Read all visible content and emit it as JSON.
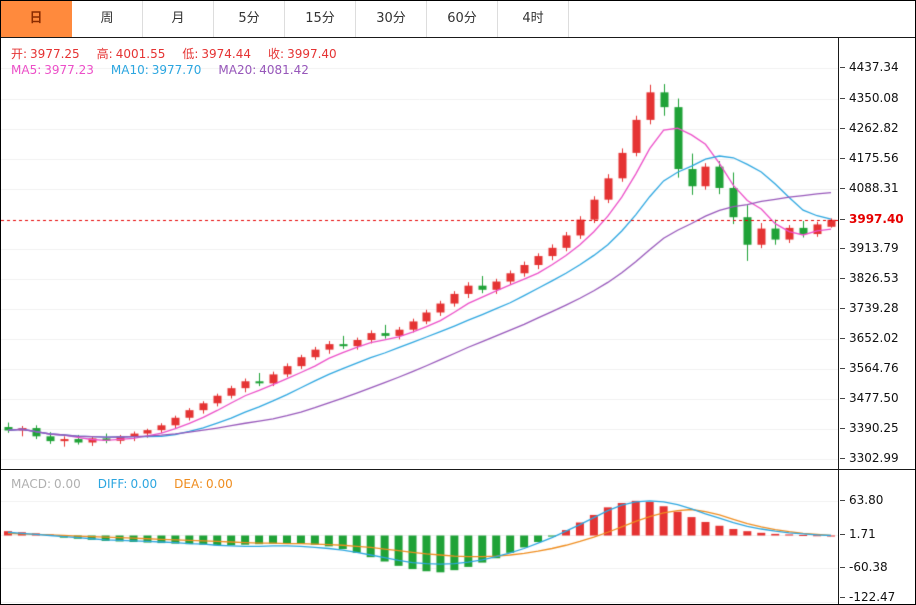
{
  "tabs": {
    "items": [
      {
        "label": "日",
        "active": true
      },
      {
        "label": "周",
        "active": false
      },
      {
        "label": "月",
        "active": false
      },
      {
        "label": "5分",
        "active": false
      },
      {
        "label": "15分",
        "active": false
      },
      {
        "label": "30分",
        "active": false
      },
      {
        "label": "60分",
        "active": false
      },
      {
        "label": "4时",
        "active": false
      }
    ]
  },
  "main_chart": {
    "info": {
      "open_label": "开:",
      "open": "3977.25",
      "high_label": "高:",
      "high": "4001.55",
      "low_label": "低:",
      "low": "3974.44",
      "close_label": "收:",
      "close": "3997.40"
    },
    "ma_info": {
      "ma5_label": "MA5:",
      "ma5": "3977.23",
      "ma10_label": "MA10:",
      "ma10": "3977.70",
      "ma20_label": "MA20:",
      "ma20": "4081.42"
    }
  },
  "macd_panel": {
    "macd_label": "MACD:",
    "macd": "0.00",
    "diff_label": "DIFF:",
    "diff": "0.00",
    "dea_label": "DEA:",
    "dea": "0.00"
  },
  "colors": {
    "up": "#e53333",
    "down": "#1fa237",
    "ma5": "#ec4fc8",
    "ma10": "#2ca6e0",
    "ma20": "#9757ba",
    "price_line": "#e60000",
    "diff": "#2ca6e0",
    "dea": "#ef8d1f",
    "grid": "#f1f1f1",
    "active_tab_bg": "#ff8a3d",
    "active_tab_text": "#8a2b00"
  },
  "chart_data": [
    {
      "type": "candlestick",
      "ylabel": "price",
      "grid": true,
      "price_range": [
        3273,
        4526
      ],
      "current_price": 3997.4,
      "ma_periods": [
        5,
        10,
        20
      ],
      "y_axis_labels": [
        4437.34,
        4350.08,
        4262.82,
        4175.56,
        4088.31,
        3913.79,
        3826.53,
        3739.28,
        3652.02,
        3564.76,
        3477.5,
        3390.25,
        3302.99
      ],
      "candles": [
        [
          3395,
          3408,
          3378,
          3385
        ],
        [
          3385,
          3398,
          3368,
          3392
        ],
        [
          3392,
          3400,
          3360,
          3368
        ],
        [
          3368,
          3380,
          3346,
          3354
        ],
        [
          3354,
          3368,
          3338,
          3360
        ],
        [
          3360,
          3372,
          3344,
          3350
        ],
        [
          3350,
          3366,
          3340,
          3362
        ],
        [
          3362,
          3376,
          3348,
          3355
        ],
        [
          3355,
          3372,
          3346,
          3368
        ],
        [
          3368,
          3382,
          3354,
          3376
        ],
        [
          3376,
          3390,
          3364,
          3386
        ],
        [
          3386,
          3406,
          3378,
          3400
        ],
        [
          3400,
          3428,
          3392,
          3422
        ],
        [
          3422,
          3450,
          3414,
          3444
        ],
        [
          3444,
          3470,
          3434,
          3464
        ],
        [
          3464,
          3492,
          3455,
          3486
        ],
        [
          3486,
          3515,
          3478,
          3508
        ],
        [
          3508,
          3536,
          3496,
          3528
        ],
        [
          3528,
          3552,
          3514,
          3522
        ],
        [
          3522,
          3556,
          3514,
          3548
        ],
        [
          3548,
          3580,
          3540,
          3572
        ],
        [
          3572,
          3605,
          3564,
          3598
        ],
        [
          3598,
          3628,
          3590,
          3620
        ],
        [
          3620,
          3645,
          3608,
          3636
        ],
        [
          3636,
          3660,
          3622,
          3630
        ],
        [
          3630,
          3655,
          3620,
          3648
        ],
        [
          3648,
          3676,
          3638,
          3668
        ],
        [
          3668,
          3692,
          3652,
          3660
        ],
        [
          3660,
          3686,
          3650,
          3678
        ],
        [
          3678,
          3710,
          3670,
          3702
        ],
        [
          3702,
          3736,
          3694,
          3728
        ],
        [
          3728,
          3762,
          3718,
          3754
        ],
        [
          3754,
          3790,
          3745,
          3782
        ],
        [
          3782,
          3816,
          3770,
          3806
        ],
        [
          3806,
          3834,
          3784,
          3794
        ],
        [
          3794,
          3826,
          3782,
          3818
        ],
        [
          3818,
          3850,
          3808,
          3842
        ],
        [
          3842,
          3876,
          3832,
          3866
        ],
        [
          3866,
          3900,
          3854,
          3892
        ],
        [
          3892,
          3926,
          3880,
          3916
        ],
        [
          3916,
          3962,
          3906,
          3952
        ],
        [
          3952,
          4008,
          3942,
          3998
        ],
        [
          3998,
          4066,
          3988,
          4056
        ],
        [
          4056,
          4130,
          4046,
          4118
        ],
        [
          4118,
          4205,
          4108,
          4192
        ],
        [
          4192,
          4300,
          4182,
          4288
        ],
        [
          4288,
          4390,
          4275,
          4368
        ],
        [
          4368,
          4392,
          4300,
          4325
        ],
        [
          4325,
          4350,
          4120,
          4145
        ],
        [
          4145,
          4190,
          4070,
          4095
        ],
        [
          4095,
          4162,
          4085,
          4152
        ],
        [
          4152,
          4168,
          4072,
          4090
        ],
        [
          4090,
          4135,
          3985,
          4005
        ],
        [
          4005,
          4040,
          3878,
          3925
        ],
        [
          3925,
          3988,
          3915,
          3972
        ],
        [
          3972,
          3998,
          3925,
          3940
        ],
        [
          3940,
          3982,
          3930,
          3974
        ],
        [
          3974,
          3994,
          3946,
          3956
        ],
        [
          3956,
          3992,
          3948,
          3984
        ],
        [
          3977.25,
          4001.55,
          3974.44,
          3997.4
        ]
      ]
    },
    {
      "type": "bar",
      "name": "MACD",
      "grid": true,
      "value_range": [
        -126.5,
        121
      ],
      "y_axis_labels": [
        63.8,
        1.71,
        -60.38,
        -122.47
      ],
      "histogram": [
        8,
        6,
        4,
        2,
        -4,
        -6,
        -8,
        -10,
        -11,
        -12,
        -13,
        -14,
        -15,
        -16,
        -17,
        -18,
        -18,
        -17,
        -16,
        -15,
        -14,
        -15,
        -17,
        -20,
        -25,
        -32,
        -40,
        -48,
        -56,
        -62,
        -66,
        -68,
        -64,
        -58,
        -50,
        -42,
        -32,
        -22,
        -12,
        -2,
        10,
        24,
        38,
        52,
        60,
        64,
        62,
        54,
        44,
        34,
        25,
        18,
        12,
        8,
        5,
        3,
        2,
        1,
        0.5,
        0
      ],
      "diff": [
        6,
        4,
        2,
        0,
        -2,
        -4,
        -6,
        -8,
        -9,
        -10,
        -11,
        -12,
        -13,
        -15,
        -16,
        -18,
        -19,
        -20,
        -20,
        -19,
        -19,
        -20,
        -22,
        -24,
        -27,
        -31,
        -36,
        -41,
        -46,
        -50,
        -52,
        -53,
        -52,
        -49,
        -45,
        -39,
        -32,
        -24,
        -14,
        -4,
        8,
        20,
        33,
        46,
        56,
        62,
        64,
        62,
        57,
        49,
        40,
        32,
        24,
        17,
        12,
        8,
        5,
        3,
        1,
        0
      ],
      "dea": [
        4,
        3,
        2,
        1,
        0,
        -1,
        -2,
        -3,
        -4,
        -5,
        -6,
        -7,
        -8,
        -9,
        -10,
        -11,
        -12,
        -13,
        -14,
        -14,
        -15,
        -15,
        -16,
        -17,
        -18,
        -20,
        -22,
        -25,
        -28,
        -31,
        -34,
        -36,
        -38,
        -39,
        -39,
        -38,
        -36,
        -33,
        -29,
        -24,
        -18,
        -11,
        -3,
        6,
        16,
        26,
        35,
        42,
        46,
        48,
        44,
        38,
        30,
        22,
        16,
        11,
        7,
        4,
        2,
        0
      ]
    }
  ]
}
